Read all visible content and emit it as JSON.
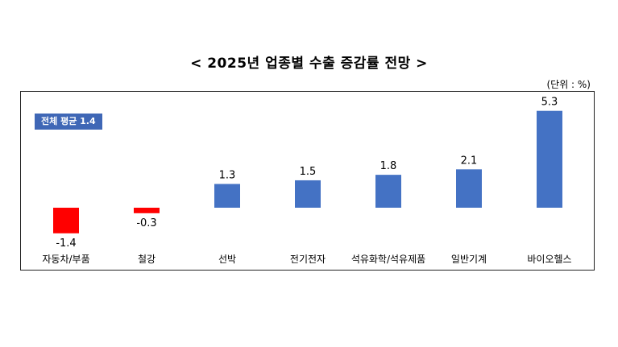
{
  "title": "< 2025년 업종별 수출 증감률 전망 >",
  "unit_label": "(단위 : %)",
  "average_badge": "전체 평균 1.4",
  "colors": {
    "positive": "#4472c4",
    "negative": "#ff0000"
  },
  "chart_data": {
    "type": "bar",
    "title": "< 2025년 업종별 수출 증감률 전망 >",
    "categories": [
      "자동차/부품",
      "철강",
      "선박",
      "전기전자",
      "석유화학/석유제품",
      "일반기계",
      "바이오헬스"
    ],
    "values": [
      -1.4,
      -0.3,
      1.3,
      1.5,
      1.8,
      2.1,
      5.3
    ],
    "value_labels": [
      "-1.4",
      "-0.3",
      "1.3",
      "1.5",
      "1.8",
      "2.1",
      "5.3"
    ],
    "annotations": [
      "전체 평균 1.4"
    ],
    "unit": "%",
    "grid": false,
    "legend": "none"
  }
}
